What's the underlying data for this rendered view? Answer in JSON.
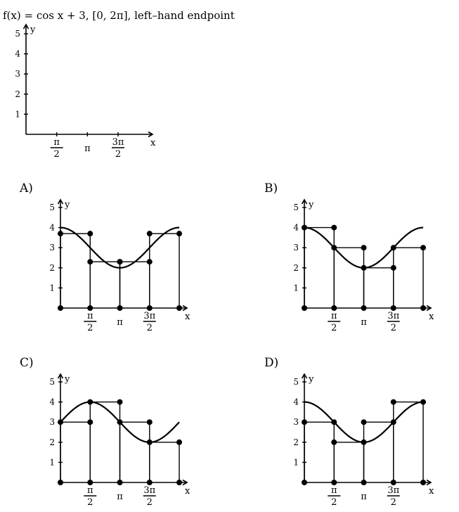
{
  "problem": {
    "text": "f(x) = cos x + 3, [0, 2π], left–hand endpoint"
  },
  "axes": {
    "x_label": "x",
    "y_label": "y",
    "y_ticks": [
      "1",
      "2",
      "3",
      "4",
      "5"
    ],
    "x_ticks": [
      {
        "num": "π",
        "den": "2"
      },
      {
        "num": "π",
        "den": ""
      },
      {
        "num": "3π",
        "den": "2"
      }
    ]
  },
  "chart_data": {
    "type": "line",
    "title": "",
    "function": "cos x + 3",
    "domain": [
      0,
      6.2832
    ],
    "xlim": [
      0,
      6.2832
    ],
    "ylim": [
      0,
      5
    ],
    "options": [
      {
        "label": "A)",
        "curve": "cos x + 3",
        "rectangles": [
          {
            "x0": 0,
            "x1": 1.5708,
            "height": 3.7
          },
          {
            "x0": 1.5708,
            "x1": 3.1416,
            "height": 2.3
          },
          {
            "x0": 3.1416,
            "x1": 4.7124,
            "height": 2.3
          },
          {
            "x0": 4.7124,
            "x1": 6.2832,
            "height": 3.7
          }
        ]
      },
      {
        "label": "B)",
        "curve": "cos x + 3",
        "rectangles": [
          {
            "x0": 0,
            "x1": 1.5708,
            "height": 4
          },
          {
            "x0": 1.5708,
            "x1": 3.1416,
            "height": 3
          },
          {
            "x0": 3.1416,
            "x1": 4.7124,
            "height": 2
          },
          {
            "x0": 4.7124,
            "x1": 6.2832,
            "height": 3
          }
        ]
      },
      {
        "label": "C)",
        "curve": "sin x + 3",
        "rectangles": [
          {
            "x0": 0,
            "x1": 1.5708,
            "height": 3
          },
          {
            "x0": 1.5708,
            "x1": 3.1416,
            "height": 4
          },
          {
            "x0": 3.1416,
            "x1": 4.7124,
            "height": 3
          },
          {
            "x0": 4.7124,
            "x1": 6.2832,
            "height": 2
          }
        ]
      },
      {
        "label": "D)",
        "curve": "cos x + 3",
        "rectangles": [
          {
            "x0": 0,
            "x1": 1.5708,
            "height": 3
          },
          {
            "x0": 1.5708,
            "x1": 3.1416,
            "height": 2
          },
          {
            "x0": 3.1416,
            "x1": 4.7124,
            "height": 3
          },
          {
            "x0": 4.7124,
            "x1": 6.2832,
            "height": 4
          }
        ]
      }
    ]
  }
}
